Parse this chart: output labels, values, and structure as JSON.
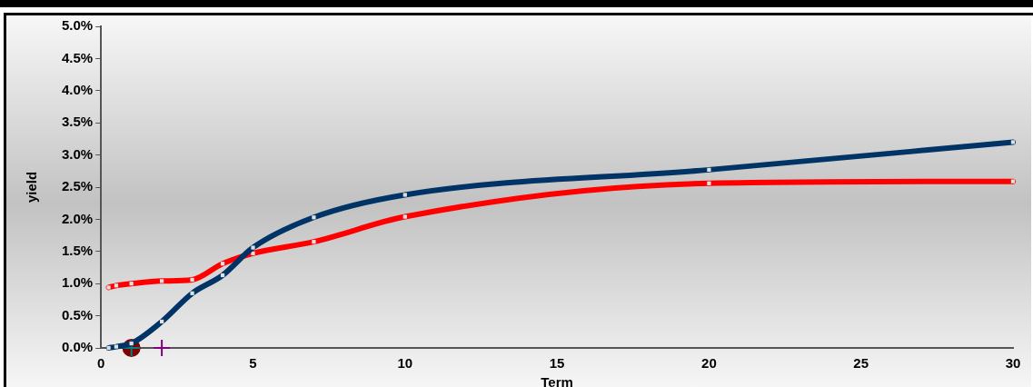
{
  "chart_data": {
    "type": "line",
    "xlabel": "Term",
    "ylabel": "yield",
    "xlim": [
      0,
      30
    ],
    "xticks": [
      0,
      5,
      10,
      15,
      20,
      25,
      30
    ],
    "ylim": [
      0,
      5
    ],
    "yticks": [
      {
        "value": 0,
        "label": "0.0%"
      },
      {
        "value": 0.5,
        "label": "0.5%"
      },
      {
        "value": 1,
        "label": "1.0%"
      },
      {
        "value": 1.5,
        "label": "1.5%"
      },
      {
        "value": 2,
        "label": "2.0%"
      },
      {
        "value": 2.5,
        "label": "2.5%"
      },
      {
        "value": 3,
        "label": "3.0%"
      },
      {
        "value": 3.5,
        "label": "3.5%"
      },
      {
        "value": 4,
        "label": "4.0%"
      },
      {
        "value": 4.5,
        "label": "4.5%"
      },
      {
        "value": 5,
        "label": "5.0%"
      }
    ],
    "grid": false,
    "legend": false,
    "marker": "square",
    "series": [
      {
        "color": "#003366",
        "x": [
          0.25,
          0.5,
          1,
          2,
          3,
          4,
          5,
          7,
          10,
          20,
          30
        ],
        "values": [
          0.0,
          0.02,
          0.07,
          0.41,
          0.85,
          1.13,
          1.56,
          2.03,
          2.38,
          2.77,
          3.2
        ]
      },
      {
        "color": "#ff0000",
        "x": [
          0.25,
          0.5,
          1,
          2,
          3,
          4,
          5,
          7,
          10,
          20,
          30
        ],
        "values": [
          0.94,
          0.97,
          1.0,
          1.04,
          1.06,
          1.31,
          1.47,
          1.65,
          2.04,
          2.56,
          2.59
        ]
      },
      {
        "type": "scatter",
        "color": "#800080",
        "marker": "cross",
        "x": [
          2
        ],
        "values": [
          0
        ]
      },
      {
        "type": "scatter",
        "color": "#800000",
        "marker": "circle",
        "x": [
          1
        ],
        "values": [
          0
        ]
      },
      {
        "type": "scatter",
        "color": "#008080",
        "marker": "cross",
        "x": [
          1
        ],
        "values": [
          0
        ]
      }
    ]
  }
}
